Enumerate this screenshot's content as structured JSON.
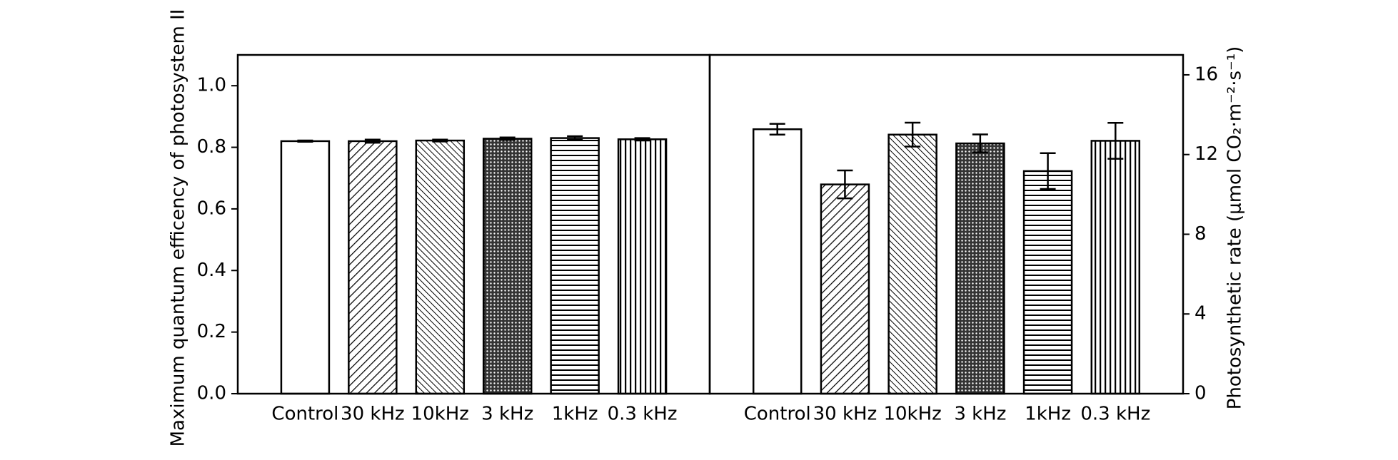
{
  "chart_data": [
    {
      "type": "bar",
      "y_label": "Maximum quantum efficency of photosystem II",
      "categories": [
        "Control",
        "30 kHz",
        "10kHz",
        "3 kHz",
        "1kHz",
        "0.3 kHz"
      ],
      "values": [
        0.82,
        0.82,
        0.822,
        0.828,
        0.83,
        0.826
      ],
      "errors": [
        0.002,
        0.005,
        0.003,
        0.004,
        0.006,
        0.004
      ],
      "ylim": [
        0,
        1.1
      ],
      "yticks": [
        {
          "value": 0,
          "label": "0.0"
        },
        0.2,
        0.4,
        0.6,
        0.8,
        {
          "value": 1,
          "label": "1.0"
        }
      ],
      "y_axis_side": "left",
      "color": "#000000"
    },
    {
      "type": "bar",
      "y_label": "Photosynthetic rate (μmol CO₂·m⁻²·s⁻¹)",
      "categories": [
        "Control",
        "30 kHz",
        "10kHz",
        "3 kHz",
        "1kHz",
        "0.3 kHz"
      ],
      "values": [
        13.27,
        10.5,
        13.0,
        12.56,
        11.17,
        12.69
      ],
      "errors": [
        0.27,
        0.7,
        0.6,
        0.45,
        0.9,
        0.9
      ],
      "ylim": [
        0,
        17
      ],
      "yticks": [
        0,
        4,
        8,
        12,
        16
      ],
      "y_axis_side": "right",
      "color": "#000000"
    }
  ]
}
